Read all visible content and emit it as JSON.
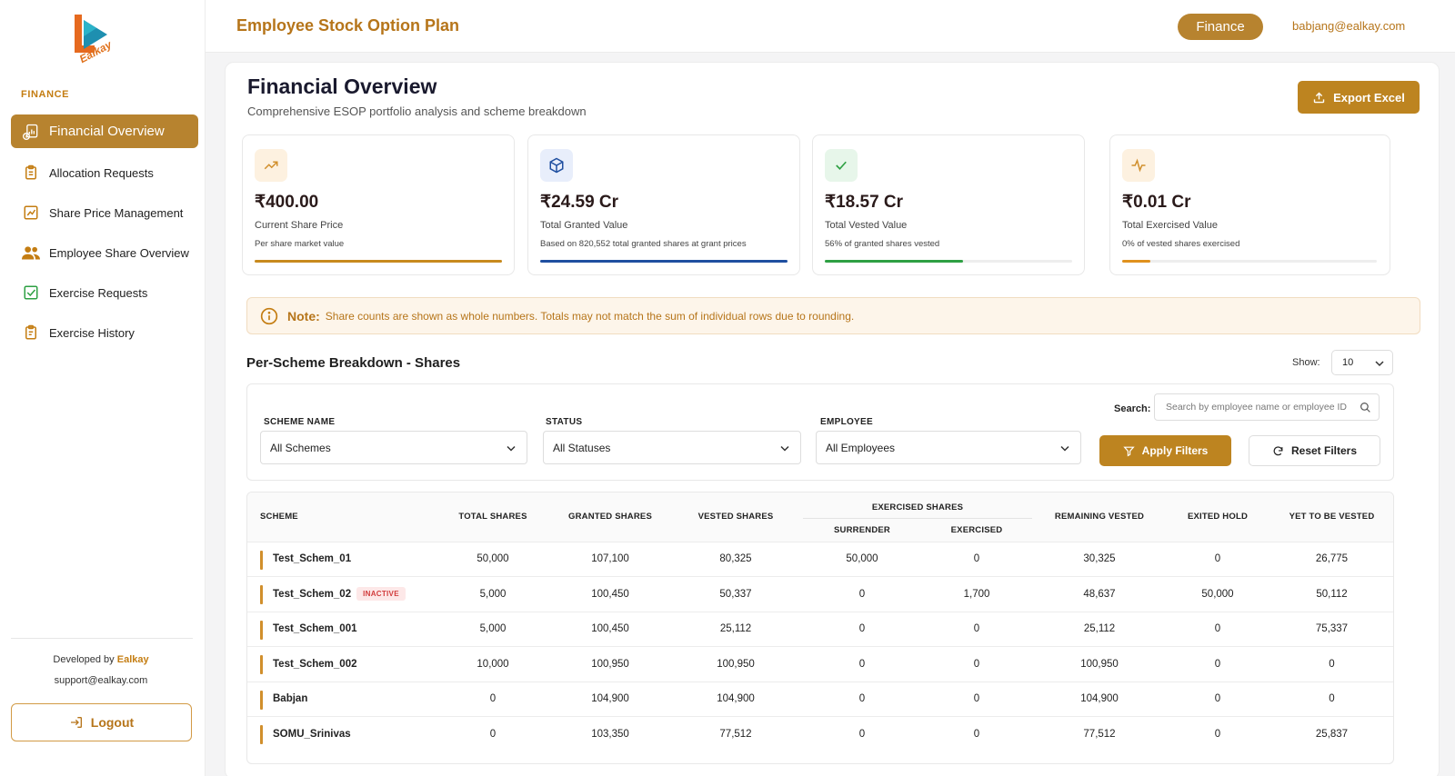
{
  "brand": {
    "logo_text": "Ealkay",
    "accent": "#b7832f"
  },
  "sidebar": {
    "section": "FINANCE",
    "items": [
      {
        "label": "Financial Overview",
        "icon": "money-bag-icon",
        "active": true
      },
      {
        "label": "Allocation Requests",
        "icon": "clipboard-icon"
      },
      {
        "label": "Share Price Management",
        "icon": "chart-icon"
      },
      {
        "label": "Employee Share Overview",
        "icon": "users-icon"
      },
      {
        "label": "Exercise Requests",
        "icon": "check-square-icon"
      },
      {
        "label": "Exercise History",
        "icon": "clipboard-list-icon"
      }
    ],
    "developed_by_prefix": "Developed by",
    "developed_by": "Ealkay",
    "support": "support@ealkay.com",
    "logout": "Logout"
  },
  "header": {
    "app_title": "Employee Stock Option Plan",
    "role": "Finance",
    "email": "babjang@ealkay.com"
  },
  "page": {
    "title": "Financial Overview",
    "subtitle": "Comprehensive ESOP portfolio analysis and scheme breakdown",
    "export": "Export Excel"
  },
  "cards": [
    {
      "value": "₹400.00",
      "label": "Current Share Price",
      "desc": "Per share market value",
      "progress": 1.0,
      "color": "#c88a1e",
      "icon": "trending-up-icon"
    },
    {
      "value": "₹24.59 Cr",
      "label": "Total Granted Value",
      "desc": "Based on 820,552 total granted shares at grant prices",
      "progress": 1.0,
      "color": "#1f4fa0",
      "icon": "cube-icon"
    },
    {
      "value": "₹18.57 Cr",
      "label": "Total Vested Value",
      "desc": "56% of granted shares vested",
      "progress": 0.56,
      "color": "#2ea043",
      "icon": "check-icon"
    },
    {
      "value": "₹0.01 Cr",
      "label": "Total Exercised Value",
      "desc": "0% of vested shares exercised",
      "progress": 0.11,
      "color": "#e0911e",
      "icon": "activity-icon"
    }
  ],
  "note": {
    "title": "Note:",
    "text": "Share counts are shown as whole numbers. Totals may not match the sum of individual rows due to rounding."
  },
  "breakdown": {
    "title": "Per-Scheme Breakdown - Shares",
    "show_label": "Show:",
    "show_value": "10"
  },
  "filters": {
    "scheme_label": "SCHEME NAME",
    "scheme_value": "All Schemes",
    "status_label": "STATUS",
    "status_value": "All Statuses",
    "employee_label": "EMPLOYEE",
    "employee_value": "All Employees",
    "search_label": "Search:",
    "search_placeholder": "Search by employee name or employee ID",
    "apply": "Apply Filters",
    "reset": "Reset Filters"
  },
  "table": {
    "headers": {
      "scheme": "SCHEME",
      "total": "TOTAL SHARES",
      "granted": "GRANTED SHARES",
      "vested": "VESTED SHARES",
      "exercised_group": "EXERCISED SHARES",
      "surrender": "SURRENDER",
      "exercised": "EXERCISED",
      "remaining": "REMAINING VESTED",
      "exited": "EXITED HOLD",
      "yet": "YET TO BE VESTED"
    },
    "inactive_label": "INACTIVE",
    "rows": [
      {
        "scheme": "Test_Schem_01",
        "inactive": false,
        "total": "50,000",
        "granted": "107,100",
        "vested": "80,325",
        "surrender": "50,000",
        "exercised": "0",
        "remaining": "30,325",
        "exited": "0",
        "yet": "26,775"
      },
      {
        "scheme": "Test_Schem_02",
        "inactive": true,
        "total": "5,000",
        "granted": "100,450",
        "vested": "50,337",
        "surrender": "0",
        "exercised": "1,700",
        "remaining": "48,637",
        "exited": "50,000",
        "yet": "50,112"
      },
      {
        "scheme": "Test_Schem_001",
        "inactive": false,
        "total": "5,000",
        "granted": "100,450",
        "vested": "25,112",
        "surrender": "0",
        "exercised": "0",
        "remaining": "25,112",
        "exited": "0",
        "yet": "75,337"
      },
      {
        "scheme": "Test_Schem_002",
        "inactive": false,
        "total": "10,000",
        "granted": "100,950",
        "vested": "100,950",
        "surrender": "0",
        "exercised": "0",
        "remaining": "100,950",
        "exited": "0",
        "yet": "0"
      },
      {
        "scheme": "Babjan",
        "inactive": false,
        "total": "0",
        "granted": "104,900",
        "vested": "104,900",
        "surrender": "0",
        "exercised": "0",
        "remaining": "104,900",
        "exited": "0",
        "yet": "0"
      },
      {
        "scheme": "SOMU_Srinivas",
        "inactive": false,
        "total": "0",
        "granted": "103,350",
        "vested": "77,512",
        "surrender": "0",
        "exercised": "0",
        "remaining": "77,512",
        "exited": "0",
        "yet": "25,837"
      }
    ]
  }
}
